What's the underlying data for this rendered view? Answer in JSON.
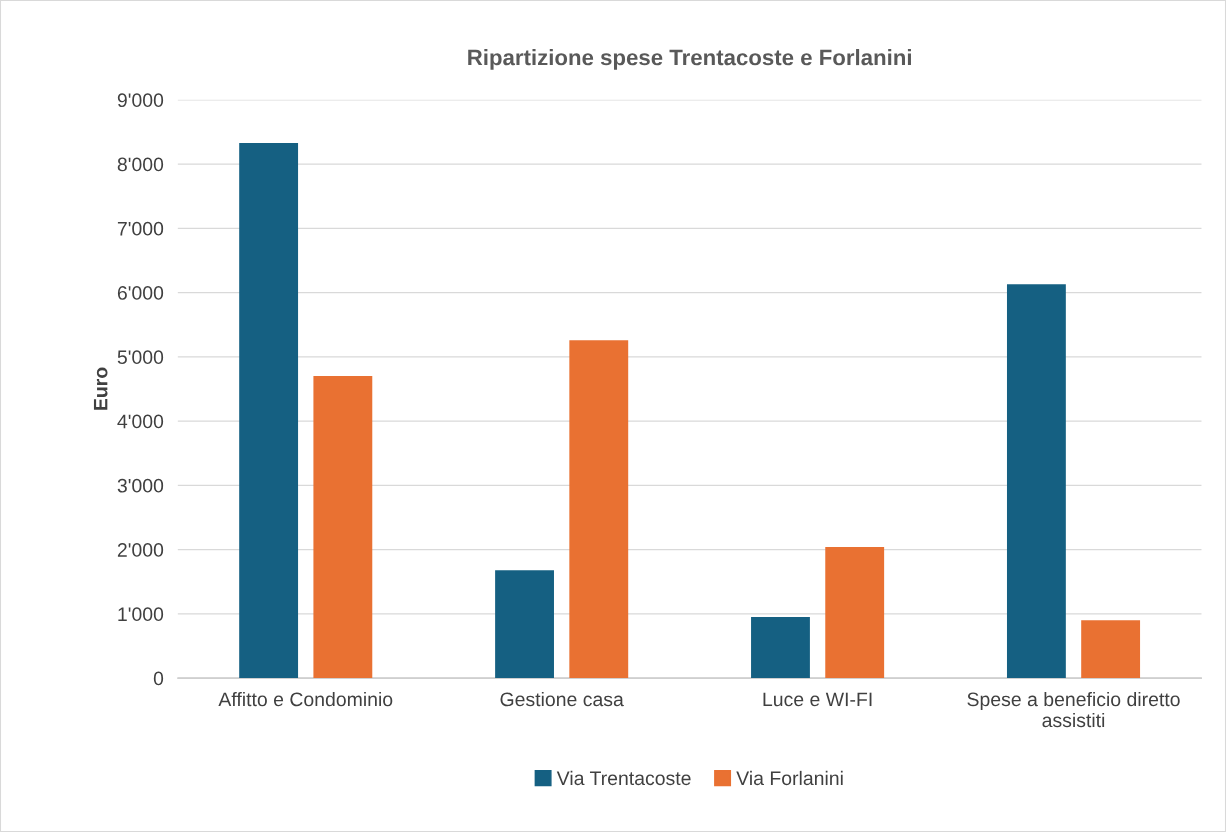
{
  "chart_data": {
    "type": "bar",
    "title": "Ripartizione spese Trentacoste e Forlanini",
    "ylabel": "Euro",
    "categories": [
      "Affitto e Condominio",
      "Gestione casa",
      "Luce e WI-FI",
      "Spese a beneficio diretto\nassistiti"
    ],
    "series": [
      {
        "name": "Via Trentacoste",
        "color": "#156082",
        "values": [
          8330,
          1680,
          950,
          6130
        ]
      },
      {
        "name": "Via Forlanini",
        "color": "#e97132",
        "values": [
          4700,
          5260,
          2040,
          900
        ]
      }
    ],
    "ylim": [
      0,
      9000
    ],
    "yticks": [
      0,
      {
        "value": 1000,
        "label": "1'000"
      },
      {
        "value": 2000,
        "label": "2'000"
      },
      {
        "value": 3000,
        "label": "3'000"
      },
      {
        "value": 4000,
        "label": "4'000"
      },
      {
        "value": 5000,
        "label": "5'000"
      },
      {
        "value": 6000,
        "label": "6'000"
      },
      {
        "value": 7000,
        "label": "7'000"
      },
      {
        "value": 8000,
        "label": "8'000"
      },
      {
        "value": 9000,
        "label": "9'000"
      }
    ],
    "grid": "y",
    "legend": "bottom"
  }
}
